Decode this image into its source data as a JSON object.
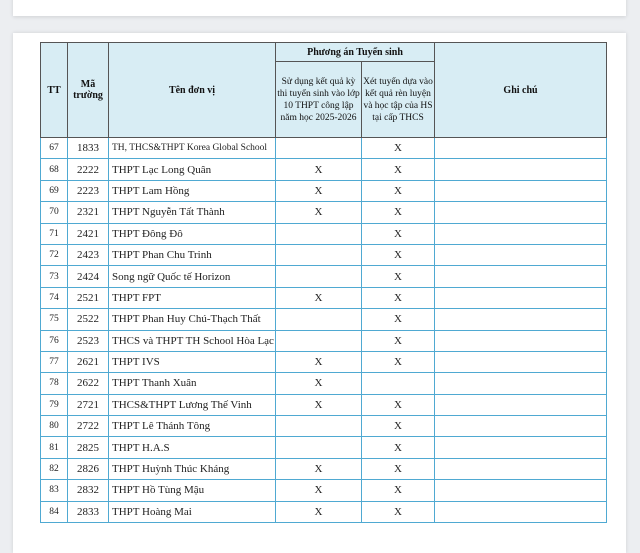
{
  "table": {
    "headers": {
      "tt": "TT",
      "ma_truong": "Mã trường",
      "ten_don_vi": "Tên đơn vị",
      "phuong_an": "Phương án Tuyển sinh",
      "option1": "Sử dụng kết quả kỳ thi tuyển sinh vào lớp 10 THPT công lập năm học 2025-2026",
      "option2": "Xét tuyển dựa vào kết quả rèn luyện và học tập của HS tại cấp THCS",
      "ghi_chu": "Ghi chú"
    },
    "rows": [
      {
        "tt": "67",
        "ma": "1833",
        "ten": "TH, THCS&THPT Korea Global School",
        "o1": "",
        "o2": "X",
        "note": ""
      },
      {
        "tt": "68",
        "ma": "2222",
        "ten": "THPT Lạc Long Quân",
        "o1": "X",
        "o2": "X",
        "note": ""
      },
      {
        "tt": "69",
        "ma": "2223",
        "ten": "THPT Lam Hồng",
        "o1": "X",
        "o2": "X",
        "note": ""
      },
      {
        "tt": "70",
        "ma": "2321",
        "ten": "THPT Nguyễn Tất Thành",
        "o1": "X",
        "o2": "X",
        "note": ""
      },
      {
        "tt": "71",
        "ma": "2421",
        "ten": "THPT Đông Đô",
        "o1": "",
        "o2": "X",
        "note": ""
      },
      {
        "tt": "72",
        "ma": "2423",
        "ten": "THPT Phan Chu Trinh",
        "o1": "",
        "o2": "X",
        "note": ""
      },
      {
        "tt": "73",
        "ma": "2424",
        "ten": "Song ngữ Quốc tế Horizon",
        "o1": "",
        "o2": "X",
        "note": ""
      },
      {
        "tt": "74",
        "ma": "2521",
        "ten": "THPT FPT",
        "o1": "X",
        "o2": "X",
        "note": ""
      },
      {
        "tt": "75",
        "ma": "2522",
        "ten": "THPT Phan Huy Chú-Thạch Thất",
        "o1": "",
        "o2": "X",
        "note": ""
      },
      {
        "tt": "76",
        "ma": "2523",
        "ten": "THCS và THPT TH School Hòa Lạc",
        "o1": "",
        "o2": "X",
        "note": ""
      },
      {
        "tt": "77",
        "ma": "2621",
        "ten": "THPT IVS",
        "o1": "X",
        "o2": "X",
        "note": ""
      },
      {
        "tt": "78",
        "ma": "2622",
        "ten": "THPT Thanh Xuân",
        "o1": "X",
        "o2": "",
        "note": ""
      },
      {
        "tt": "79",
        "ma": "2721",
        "ten": "THCS&THPT Lương Thế Vinh",
        "o1": "X",
        "o2": "X",
        "note": ""
      },
      {
        "tt": "80",
        "ma": "2722",
        "ten": "THPT Lê Thánh Tông",
        "o1": "",
        "o2": "X",
        "note": ""
      },
      {
        "tt": "81",
        "ma": "2825",
        "ten": "THPT H.A.S",
        "o1": "",
        "o2": "X",
        "note": ""
      },
      {
        "tt": "82",
        "ma": "2826",
        "ten": "THPT Huỳnh Thúc Kháng",
        "o1": "X",
        "o2": "X",
        "note": ""
      },
      {
        "tt": "83",
        "ma": "2832",
        "ten": "THPT Hồ Tùng Mậu",
        "o1": "X",
        "o2": "X",
        "note": ""
      },
      {
        "tt": "84",
        "ma": "2833",
        "ten": "THPT Hoàng Mai",
        "o1": "X",
        "o2": "X",
        "note": ""
      }
    ]
  }
}
